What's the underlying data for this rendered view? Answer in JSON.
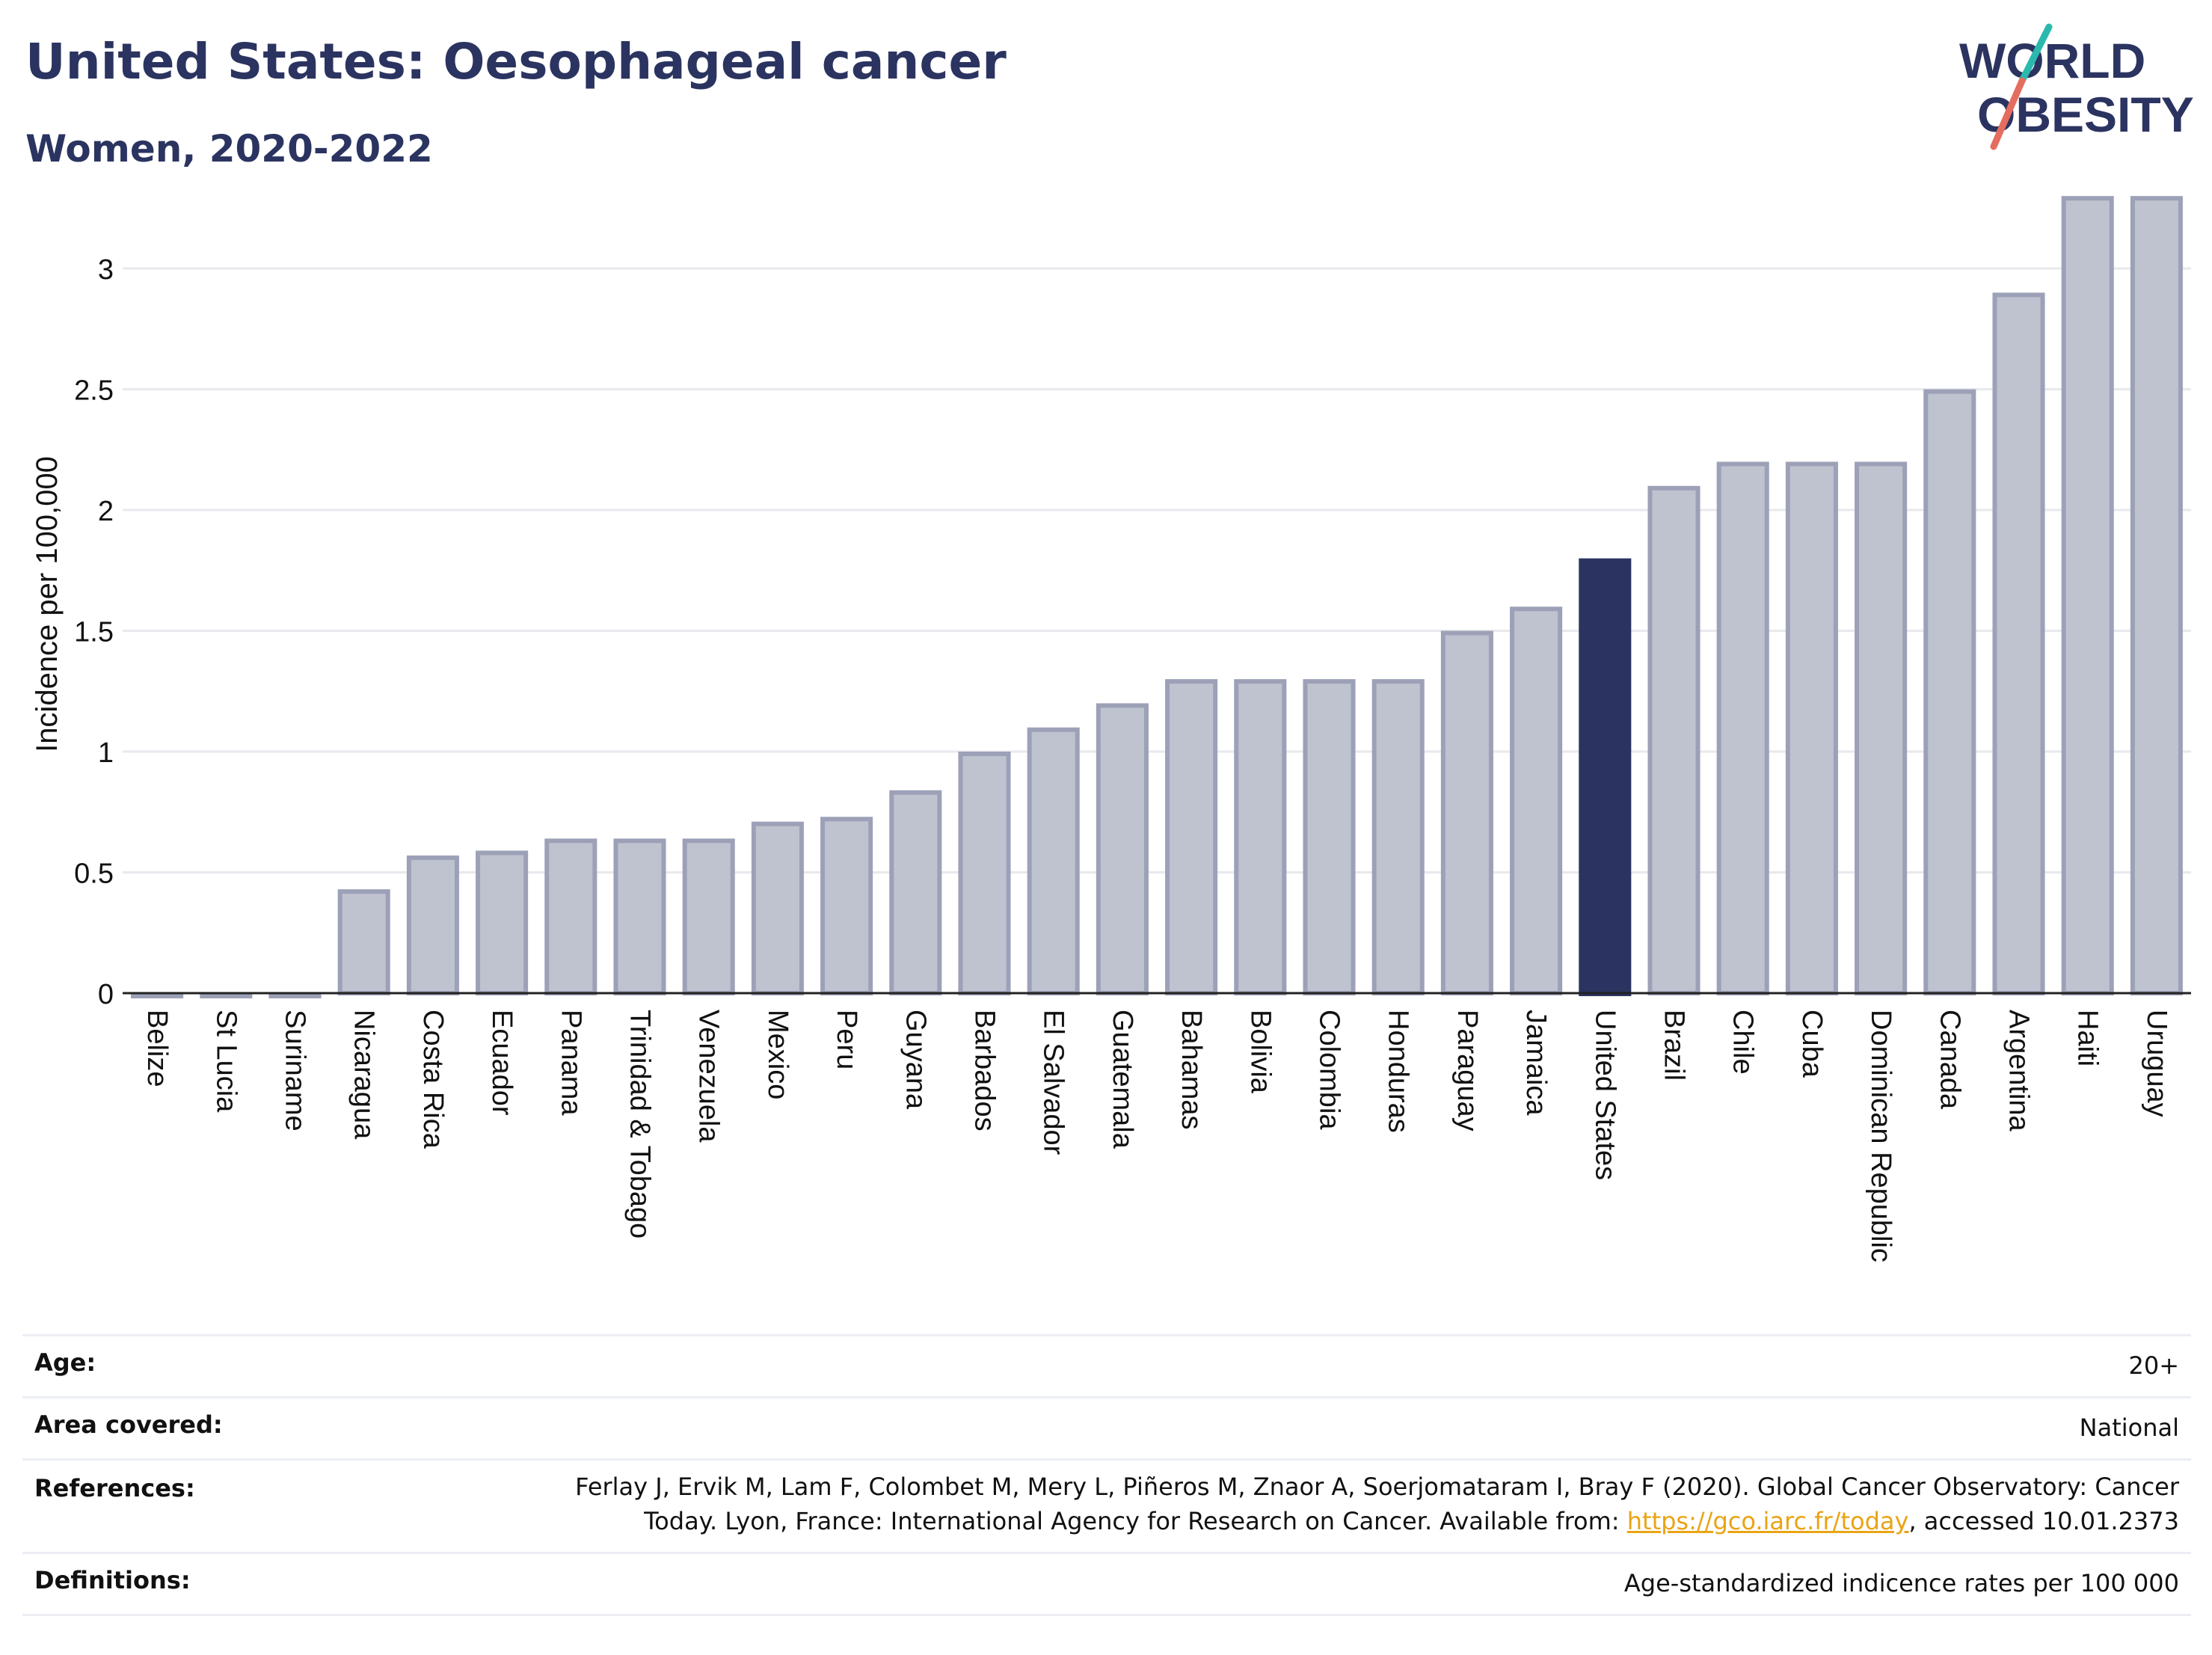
{
  "header": {
    "title": "United States: Oesophageal cancer",
    "subtitle": "Women, 2020-2022"
  },
  "logo": {
    "line1": "WORLD",
    "line2": "OBESITY"
  },
  "colors": {
    "title": "#2b3460",
    "bar_default": "#bfc2cf",
    "bar_border": "#9da1b7",
    "bar_highlight": "#2b3460",
    "logo_teal": "#2bb9ad",
    "logo_coral": "#e56d5f",
    "link": "#e9a415"
  },
  "chart_data": {
    "type": "bar",
    "ylabel": "Incidence per 100,000",
    "ylim": [
      0,
      3.35
    ],
    "yticks": [
      0,
      0.5,
      1,
      1.5,
      2,
      2.5,
      3
    ],
    "ytick_labels": [
      "0",
      "0.5",
      "1",
      "1.5",
      "2",
      "2.5",
      "3"
    ],
    "grid": true,
    "highlight": "United States",
    "categories": [
      "Belize",
      "St Lucia",
      "Suriname",
      "Nicaragua",
      "Costa Rica",
      "Ecuador",
      "Panama",
      "Trinidad & Tobago",
      "Venezuela",
      "Mexico",
      "Peru",
      "Guyana",
      "Barbados",
      "El Salvador",
      "Guatemala",
      "Bahamas",
      "Bolivia",
      "Colombia",
      "Honduras",
      "Paraguay",
      "Jamaica",
      "United States",
      "Brazil",
      "Chile",
      "Cuba",
      "Dominican Republic",
      "Canada",
      "Argentina",
      "Haiti",
      "Uruguay"
    ],
    "values": [
      0,
      0,
      0,
      0.43,
      0.57,
      0.59,
      0.64,
      0.64,
      0.64,
      0.71,
      0.73,
      0.84,
      1.0,
      1.1,
      1.2,
      1.3,
      1.3,
      1.3,
      1.3,
      1.5,
      1.6,
      1.8,
      2.1,
      2.2,
      2.2,
      2.2,
      2.5,
      2.9,
      3.3,
      3.3
    ]
  },
  "meta": {
    "age_label": "Age:",
    "age_value": "20+",
    "area_label": "Area covered:",
    "area_value": "National",
    "references_label": "References:",
    "references_line1": "Ferlay J, Ervik M, Lam F, Colombet M, Mery L, Piñeros M, Znaor A, Soerjomataram I, Bray F (2020). Global Cancer Observatory: Cancer",
    "references_line2_prefix": "Today. Lyon, France: International Agency for Research on Cancer. Available from: ",
    "references_link": "https://gco.iarc.fr/today",
    "references_line2_suffix": ", accessed 10.01.2373",
    "definitions_label": "Definitions:",
    "definitions_value": "Age-standardized indicence rates per 100 000"
  }
}
